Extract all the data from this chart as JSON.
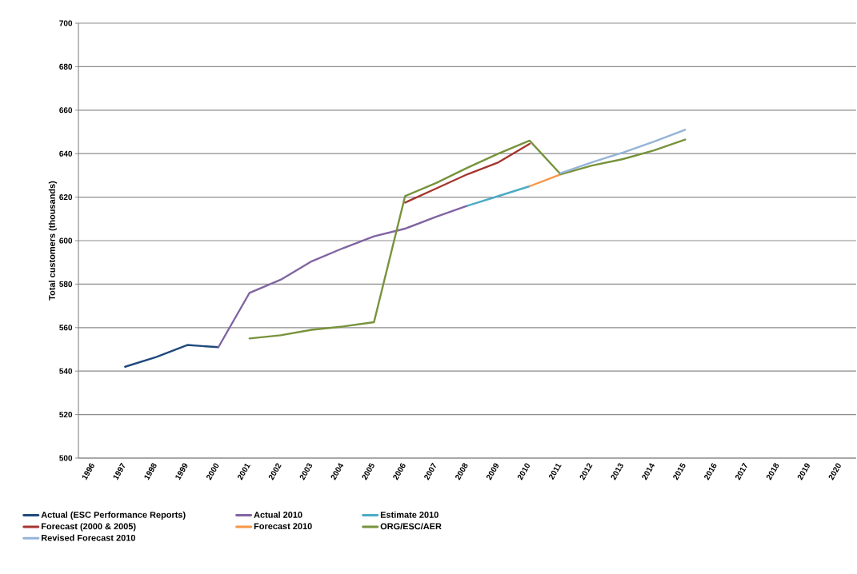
{
  "chart_data": {
    "type": "line",
    "ylabel": "Total customers (thousands)",
    "categories": [
      "1996",
      "1997",
      "1998",
      "1999",
      "2000",
      "2001",
      "2002",
      "2003",
      "2004",
      "2005",
      "2006",
      "2007",
      "2008",
      "2009",
      "2010",
      "2011",
      "2012",
      "2013",
      "2014",
      "2015",
      "2016",
      "2017",
      "2018",
      "2019",
      "2020"
    ],
    "ylim": [
      500,
      700
    ],
    "yticks": [
      500,
      520,
      540,
      560,
      580,
      600,
      620,
      640,
      660,
      680,
      700
    ],
    "grid": "y",
    "legend": "bottom",
    "marker": "none",
    "series": [
      {
        "name": "Actual (ESC Performance Reports)",
        "color": "#1f497d",
        "values": [
          null,
          542,
          546.5,
          552,
          551,
          null,
          null,
          null,
          null,
          null,
          null,
          null,
          null,
          null,
          null,
          null,
          null,
          null,
          null,
          null,
          null,
          null,
          null,
          null,
          null
        ]
      },
      {
        "name": "Actual 2010",
        "color": "#8064a2",
        "values": [
          null,
          null,
          null,
          null,
          551,
          576,
          582,
          590.5,
          596.5,
          602,
          605.5,
          611,
          616,
          null,
          null,
          null,
          null,
          null,
          null,
          null,
          null,
          null,
          null,
          null,
          null
        ]
      },
      {
        "name": "Estimate 2010",
        "color": "#4bacc6",
        "values": [
          null,
          null,
          null,
          null,
          null,
          null,
          null,
          null,
          null,
          null,
          null,
          null,
          616,
          620.5,
          625,
          null,
          null,
          null,
          null,
          null,
          null,
          null,
          null,
          null,
          null
        ]
      },
      {
        "name": "Forecast (2000 & 2005)",
        "color": "#a5362f",
        "values": [
          null,
          null,
          null,
          null,
          null,
          null,
          null,
          null,
          null,
          null,
          617.5,
          624,
          630.5,
          636,
          644.5,
          null,
          null,
          null,
          null,
          null,
          null,
          null,
          null,
          null,
          null
        ]
      },
      {
        "name": "Forecast 2010",
        "color": "#f79646",
        "values": [
          null,
          null,
          null,
          null,
          null,
          null,
          null,
          null,
          null,
          null,
          null,
          null,
          null,
          null,
          625,
          630.5,
          null,
          null,
          null,
          null,
          null,
          null,
          null,
          null,
          null
        ]
      },
      {
        "name": "ORG/ESC/AER",
        "color": "#77933c",
        "values": [
          null,
          null,
          null,
          null,
          null,
          555,
          556.5,
          559,
          560.5,
          562.5,
          620.5,
          626.5,
          633.5,
          640,
          646,
          630.5,
          634.5,
          637.5,
          641.5,
          646.5,
          null,
          null,
          null,
          null,
          null
        ]
      },
      {
        "name": "Revised Forecast 2010",
        "color": "#95b3d7",
        "values": [
          null,
          null,
          null,
          null,
          null,
          null,
          null,
          null,
          null,
          null,
          null,
          null,
          null,
          null,
          null,
          631,
          636,
          640.5,
          645.5,
          651,
          null,
          null,
          null,
          null,
          null
        ]
      }
    ]
  }
}
